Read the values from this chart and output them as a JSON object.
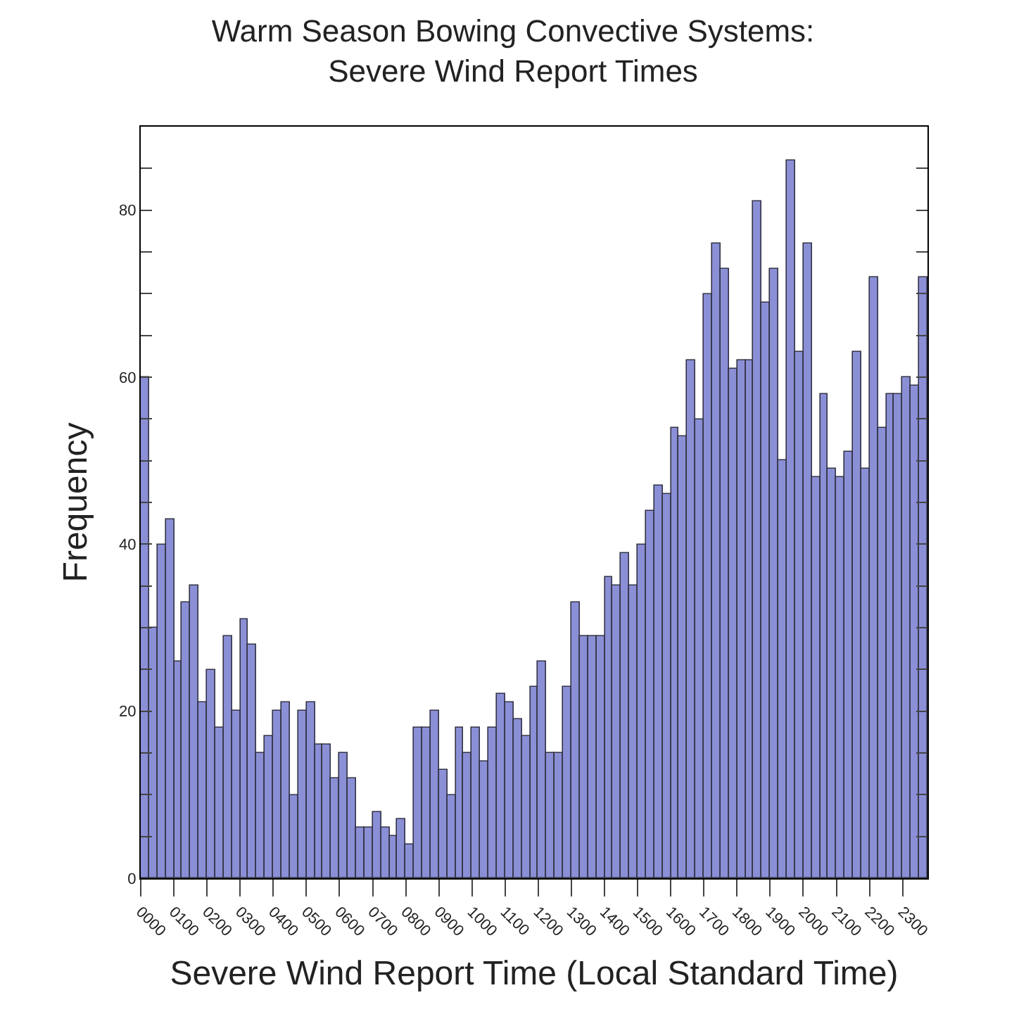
{
  "chart_data": {
    "type": "histogram",
    "title": "Warm Season Bowing Convective Systems:\nSevere Wind Report Times",
    "xlabel": "Severe Wind Report Time (Local Standard Time)",
    "ylabel": "Frequency",
    "bins": [
      0,
      25,
      50,
      75,
      100,
      125,
      150,
      175,
      200,
      225,
      250,
      275,
      300,
      325,
      350,
      375,
      400,
      425,
      450,
      475,
      500,
      525,
      550,
      575,
      600,
      625,
      650,
      675,
      700,
      725,
      750,
      775,
      800,
      825,
      850,
      875,
      900,
      925,
      950,
      975,
      1000,
      1025,
      1050,
      1075,
      1100,
      1125,
      1150,
      1175,
      1200,
      1225,
      1250,
      1275,
      1300,
      1325,
      1350,
      1375,
      1400,
      1425,
      1450,
      1475,
      1500,
      1525,
      1550,
      1575,
      1600,
      1625,
      1650,
      1675,
      1700,
      1725,
      1750,
      1775,
      1800,
      1825,
      1850,
      1875,
      1900,
      1925,
      1950,
      1975,
      2000,
      2025,
      2050,
      2075,
      2100,
      2125,
      2150,
      2175,
      2200,
      2225,
      2250,
      2275,
      2300,
      2325,
      2350,
      2375
    ],
    "values": [
      60,
      30,
      40,
      43,
      26,
      33,
      35,
      21,
      25,
      18,
      29,
      20,
      31,
      28,
      15,
      17,
      20,
      21,
      10,
      20,
      21,
      16,
      16,
      12,
      15,
      12,
      6,
      6,
      8,
      6,
      5,
      7,
      4,
      18,
      18,
      20,
      13,
      10,
      18,
      15,
      18,
      14,
      18,
      22,
      21,
      19,
      17,
      23,
      26,
      15,
      15,
      23,
      33,
      29,
      29,
      29,
      36,
      35,
      39,
      35,
      40,
      44,
      47,
      46,
      54,
      53,
      62,
      55,
      70,
      76,
      73,
      61,
      62,
      62,
      81,
      69,
      73,
      50,
      86,
      63,
      76,
      48,
      58,
      49,
      48,
      51,
      63,
      49,
      72,
      54,
      58,
      58,
      60,
      59,
      72
    ],
    "color": "#8a8fd6",
    "xlim": [
      0,
      2375
    ],
    "xticks": [
      {
        "value": 0,
        "label": "0000"
      },
      {
        "value": 100,
        "label": "0100"
      },
      {
        "value": 200,
        "label": "0200"
      },
      {
        "value": 300,
        "label": "0300"
      },
      {
        "value": 400,
        "label": "0400"
      },
      {
        "value": 500,
        "label": "0500"
      },
      {
        "value": 600,
        "label": "0600"
      },
      {
        "value": 700,
        "label": "0700"
      },
      {
        "value": 800,
        "label": "0800"
      },
      {
        "value": 900,
        "label": "0900"
      },
      1000,
      1100,
      1200,
      1300,
      1400,
      1500,
      1600,
      1700,
      1800,
      1900,
      2000,
      2100,
      2200,
      2300
    ],
    "ylim": [
      0,
      90
    ],
    "yticks": [
      0,
      {
        "value": 5,
        "label": null
      },
      {
        "value": 10,
        "label": null
      },
      {
        "value": 15,
        "label": null
      },
      20,
      {
        "value": 25,
        "label": null
      },
      {
        "value": 30,
        "label": null
      },
      {
        "value": 35,
        "label": null
      },
      40,
      {
        "value": 45,
        "label": null
      },
      {
        "value": 50,
        "label": null
      },
      {
        "value": 55,
        "label": null
      },
      60,
      {
        "value": 65,
        "label": null
      },
      {
        "value": 70,
        "label": null
      },
      {
        "value": 75,
        "label": null
      },
      80,
      {
        "value": 85,
        "label": null
      }
    ]
  }
}
